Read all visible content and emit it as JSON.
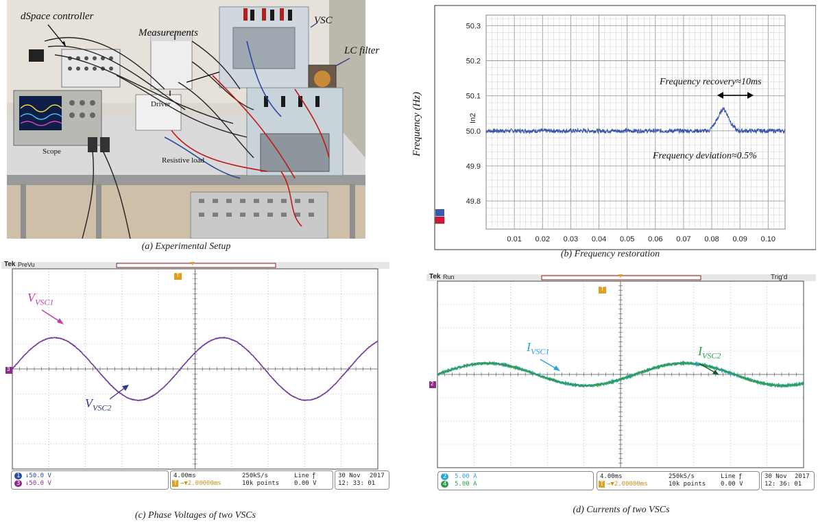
{
  "panel_a": {
    "caption": "(a) Experimental Setup",
    "labels": {
      "dspace": "dSpace controller",
      "measurements": "Measurements",
      "vsc": "VSC",
      "lc_filter": "LC filter",
      "driver": "Driver",
      "scope": "Scope",
      "resistive_load": "Resistive load"
    }
  },
  "panel_b": {
    "caption": "(b) Frequency restoration",
    "ylabel": "Frequency (Hz)",
    "channel_label": "In2",
    "annotation_recovery": "Frequency recovery≈10ms",
    "annotation_deviation": "Frequency deviation≈0.5%",
    "chart_data": {
      "type": "line",
      "ylabel": "Frequency (Hz)",
      "x_ticks": [
        "0.01",
        "0.02",
        "0.03",
        "0.04",
        "0.05",
        "0.06",
        "0.07",
        "0.08",
        "0.09",
        "0.10"
      ],
      "y_ticks": [
        "50.3",
        "50.2",
        "50.1",
        "50.0",
        "49.9",
        "49.8"
      ],
      "xlim": [
        0.0,
        0.106
      ],
      "ylim": [
        49.72,
        50.33
      ],
      "series": [
        {
          "color": "#3a56a8",
          "x": [
            0.0,
            0.02,
            0.04,
            0.06,
            0.075,
            0.079,
            0.081,
            0.083,
            0.084,
            0.085,
            0.087,
            0.089,
            0.092,
            0.106
          ],
          "y": [
            50.0,
            50.0,
            50.0,
            50.0,
            50.0,
            50.0,
            50.02,
            50.05,
            50.065,
            50.055,
            50.02,
            50.0,
            50.0,
            50.0
          ]
        }
      ]
    }
  },
  "panel_c": {
    "caption": "(c) Phase Voltages of two VSCs",
    "brand": "Tek",
    "status": "PreVu",
    "ch1": "50.0 V",
    "ch3": "50.0 V",
    "timebase": "4.00ms",
    "sample_rate": "250kS/s",
    "trigger_pos": "2.00000ms",
    "points": "10k points",
    "trigger_src": "Line",
    "trigger_level": "0.00 V",
    "date": "30 Nov",
    "year": "2017",
    "time": "12: 33: 01",
    "ch_marker": "3",
    "trigger_marker": "T",
    "sig1_main": "V",
    "sig1_sub": "VSC1",
    "sig2_main": "V",
    "sig2_sub": "VSC2",
    "chart_data": {
      "type": "line",
      "divisions_x": 10,
      "divisions_y": 8,
      "series": [
        {
          "name": "VSC1",
          "color": "#c03ca8",
          "amplitude_div": 1.25,
          "period_div": 4.6,
          "phase_div": 0.0
        },
        {
          "name": "VSC2",
          "color": "#4a3e9c",
          "amplitude_div": 1.25,
          "period_div": 4.6,
          "phase_div": 0.0
        }
      ]
    }
  },
  "panel_d": {
    "caption": "(d) Currents of two VSCs",
    "brand": "Tek",
    "status": "Run",
    "trig_status": "Trig'd",
    "ch2": "5.00 A",
    "ch4": "5.00 A",
    "timebase": "4.00ms",
    "sample_rate": "250kS/s",
    "trigger_pos": "2.00000ms",
    "points": "10k points",
    "trigger_src": "Line",
    "trigger_level": "0.00 V",
    "date": "30 Nov",
    "year": "2017",
    "time": "12: 36: 01",
    "ch_marker": "2",
    "trigger_marker": "T",
    "sig1_main": "I",
    "sig1_sub": "VSC1",
    "sig2_main": "I",
    "sig2_sub": "VSC2",
    "chart_data": {
      "type": "line",
      "divisions_x": 10,
      "divisions_y": 8,
      "series": [
        {
          "name": "VSC1",
          "color": "#2ba4d8",
          "amplitude_div": 0.48,
          "period_div": 5.4,
          "phase_div": 0.0
        },
        {
          "name": "VSC2",
          "color": "#2f9a48",
          "amplitude_div": 0.48,
          "period_div": 5.4,
          "phase_div": 0.0
        }
      ]
    }
  }
}
